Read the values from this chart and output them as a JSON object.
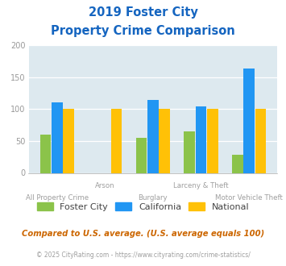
{
  "title_line1": "2019 Foster City",
  "title_line2": "Property Crime Comparison",
  "title_color": "#1565C0",
  "categories": [
    "All Property Crime",
    "Arson",
    "Burglary",
    "Larceny & Theft",
    "Motor Vehicle Theft"
  ],
  "foster_city": [
    60,
    0,
    55,
    65,
    29
  ],
  "california": [
    111,
    0,
    114,
    104,
    163
  ],
  "national": [
    100,
    100,
    100,
    100,
    100
  ],
  "foster_color": "#8BC34A",
  "california_color": "#2196F3",
  "national_color": "#FFC107",
  "ylim": [
    0,
    200
  ],
  "yticks": [
    0,
    50,
    100,
    150,
    200
  ],
  "bg_color": "#DDE9EF",
  "fig_bg": "#FFFFFF",
  "xlabel_color": "#9E9E9E",
  "footnote1": "Compared to U.S. average. (U.S. average equals 100)",
  "footnote2": "© 2025 CityRating.com - https://www.cityrating.com/crime-statistics/",
  "footnote1_color": "#CC6600",
  "footnote2_color": "#9E9E9E",
  "footnote2_link_color": "#2196F3"
}
